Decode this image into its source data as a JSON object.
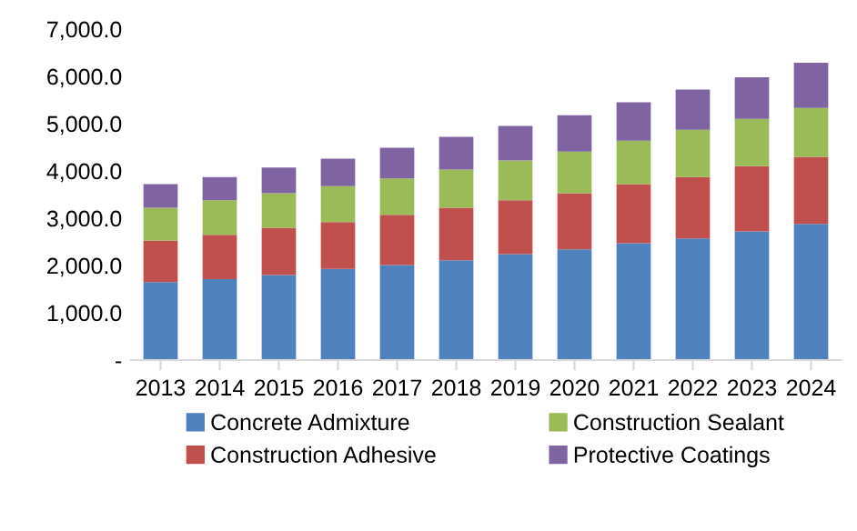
{
  "chart_data": {
    "type": "bar",
    "stacked": true,
    "categories": [
      "2013",
      "2014",
      "2015",
      "2016",
      "2017",
      "2018",
      "2019",
      "2020",
      "2021",
      "2022",
      "2023",
      "2024"
    ],
    "series": [
      {
        "name": "Concrete Admixture",
        "color": "#4f81bd",
        "values": [
          1650,
          1710,
          1800,
          1930,
          2010,
          2110,
          2240,
          2340,
          2470,
          2570,
          2720,
          2880
        ]
      },
      {
        "name": "Construction Adhesive",
        "color": "#c0504d",
        "values": [
          880,
          940,
          1000,
          990,
          1060,
          1110,
          1140,
          1190,
          1250,
          1300,
          1380,
          1420
        ]
      },
      {
        "name": "Construction Sealant",
        "color": "#9bbb59",
        "values": [
          690,
          730,
          730,
          760,
          770,
          810,
          840,
          880,
          920,
          1000,
          1000,
          1030
        ]
      },
      {
        "name": "Protective Coatings",
        "color": "#8064a2",
        "values": [
          500,
          490,
          540,
          580,
          650,
          690,
          730,
          770,
          810,
          850,
          880,
          960
        ]
      }
    ],
    "ylim": [
      0,
      7000
    ],
    "yticks": [
      {
        "value": 0,
        "label": "-"
      },
      {
        "value": 1000,
        "label": "1,000.0"
      },
      {
        "value": 2000,
        "label": "2,000.0"
      },
      {
        "value": 3000,
        "label": "3,000.0"
      },
      {
        "value": 4000,
        "label": "4,000.0"
      },
      {
        "value": 5000,
        "label": "5,000.0"
      },
      {
        "value": 6000,
        "label": "6,000.0"
      },
      {
        "value": 7000,
        "label": "7,000.0"
      }
    ],
    "grid": false,
    "legend": "bottom"
  }
}
